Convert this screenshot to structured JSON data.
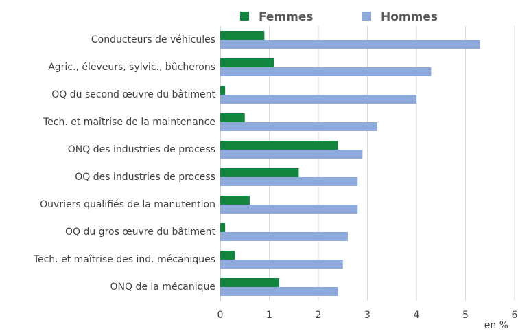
{
  "chart_data": {
    "type": "bar",
    "orientation": "horizontal",
    "categories": [
      "Conducteurs de véhicules",
      "Agric., éleveurs, sylvic., bûcherons",
      "OQ du second œuvre du bâtiment",
      "Tech. et maîtrise de la maintenance",
      "ONQ des industries de process",
      "OQ des industries de process",
      "Ouvriers qualifiés de la manutention",
      "OQ du gros œuvre du bâtiment",
      "Tech. et maîtrise des ind. mécaniques",
      "ONQ de la mécanique"
    ],
    "series": [
      {
        "name": "Femmes",
        "color": "#14853f",
        "values": [
          0.9,
          1.1,
          0.1,
          0.5,
          2.4,
          1.6,
          0.6,
          0.1,
          0.3,
          1.2
        ]
      },
      {
        "name": "Hommes",
        "color": "#8eaadb",
        "values": [
          5.3,
          4.3,
          4.0,
          3.2,
          2.9,
          2.8,
          2.8,
          2.6,
          2.5,
          2.4
        ]
      }
    ],
    "xlim": [
      0,
      6
    ],
    "xticks": [
      0,
      1,
      2,
      3,
      4,
      5,
      6
    ],
    "xlabel": "en %",
    "grid": true,
    "legend": "top"
  }
}
